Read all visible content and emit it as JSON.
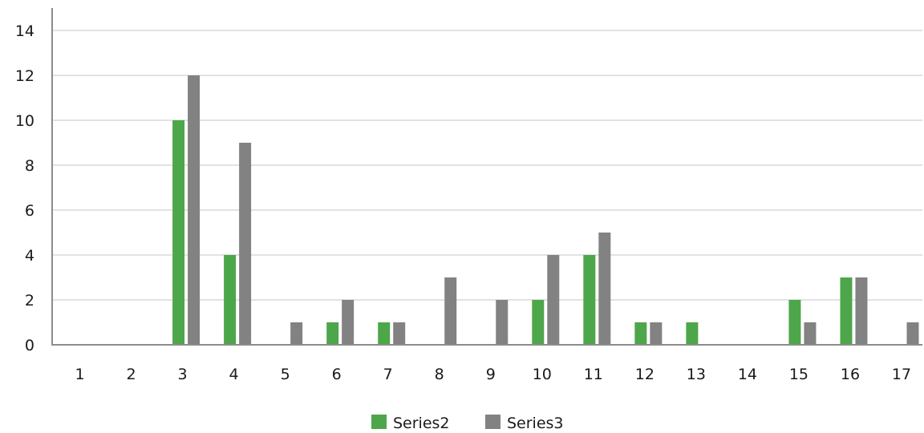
{
  "chart_data": {
    "type": "bar",
    "title": "",
    "xlabel": "",
    "ylabel": "",
    "categories": [
      "1",
      "2",
      "3",
      "4",
      "5",
      "6",
      "7",
      "8",
      "9",
      "10",
      "11",
      "12",
      "13",
      "14",
      "15",
      "16",
      "17"
    ],
    "series": [
      {
        "name": "Series2",
        "color": "#4ea64a",
        "values": [
          0,
          0,
          10,
          4,
          0,
          1,
          1,
          0,
          0,
          2,
          4,
          1,
          1,
          0,
          2,
          3,
          0
        ]
      },
      {
        "name": "Series3",
        "color": "#828282",
        "values": [
          0,
          0,
          12,
          9,
          1,
          2,
          1,
          3,
          2,
          4,
          5,
          1,
          0,
          0,
          1,
          3,
          1
        ]
      }
    ],
    "ylim": [
      0,
      14
    ],
    "yticks": [
      "0",
      "2",
      "4",
      "6",
      "8",
      "10",
      "12",
      "14"
    ],
    "grid": true,
    "legend_position": "bottom"
  }
}
